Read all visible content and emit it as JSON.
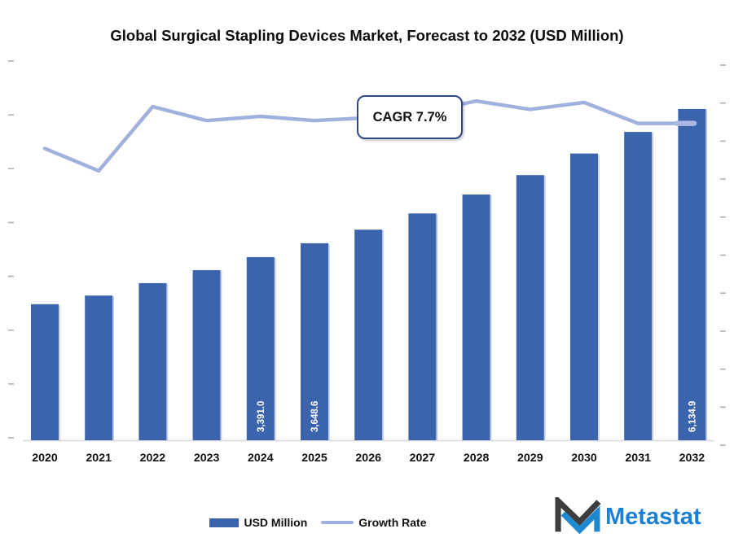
{
  "chart_data": {
    "type": "bar",
    "subtype": "combo-bar-line",
    "title": "Global Surgical Stapling Devices Market, Forecast to 2032 (USD Million)",
    "categories": [
      "2020",
      "2021",
      "2022",
      "2023",
      "2024",
      "2025",
      "2026",
      "2027",
      "2028",
      "2029",
      "2030",
      "2031",
      "2032"
    ],
    "series": [
      {
        "name": "USD Million",
        "type": "bar",
        "color": "#3c64ac",
        "values": [
          2520,
          2680,
          2910,
          3150,
          3391.0,
          3648.6,
          3900,
          4200,
          4550,
          4910,
          5310,
          5710,
          6134.9
        ]
      },
      {
        "name": "Growth Rate",
        "type": "line",
        "color": "#a1b1dd",
        "values": [
          7.1,
          6.3,
          8.6,
          8.1,
          8.25,
          8.1,
          8.2,
          8.4,
          8.8,
          8.5,
          8.75,
          8.0,
          8.0
        ]
      }
    ],
    "data_labels": {
      "2024": "3,391.0",
      "2025": "3,648.6",
      "2032": "6,134.9"
    },
    "annotation": "CAGR 7.7%",
    "xlabel": "",
    "ylabel": "",
    "layout_hints": {
      "left_axis_ticks": 8,
      "right_axis_ticks": 11,
      "axis_tick_labels_visible": false,
      "gridlines": false,
      "legend_position": "bottom-center",
      "bar_label_style": "rotated-white-inside-bottom"
    }
  },
  "legend": {
    "items": [
      {
        "label": "USD Million",
        "swatch": "bar",
        "color": "#3c64ac"
      },
      {
        "label": "Growth Rate",
        "swatch": "line",
        "color": "#a1b1dd"
      }
    ]
  },
  "branding": {
    "logo_text": "Metastat",
    "logo_text_color": "#1a7fd6",
    "logo_mark_dark": "#3d3d3d",
    "logo_mark_blue": "#1e88d2"
  },
  "colors": {
    "bar_fill": "#3c64ac",
    "bar_edge_highlight": "#bcc9e8",
    "line": "#a1b1dd",
    "line_end_cap": "#aab7e0",
    "axis_line": "#d8d8d8",
    "tick": "#b0b0b0",
    "title_text": "#0d0d0d",
    "cagr_border": "#2e4a80"
  }
}
